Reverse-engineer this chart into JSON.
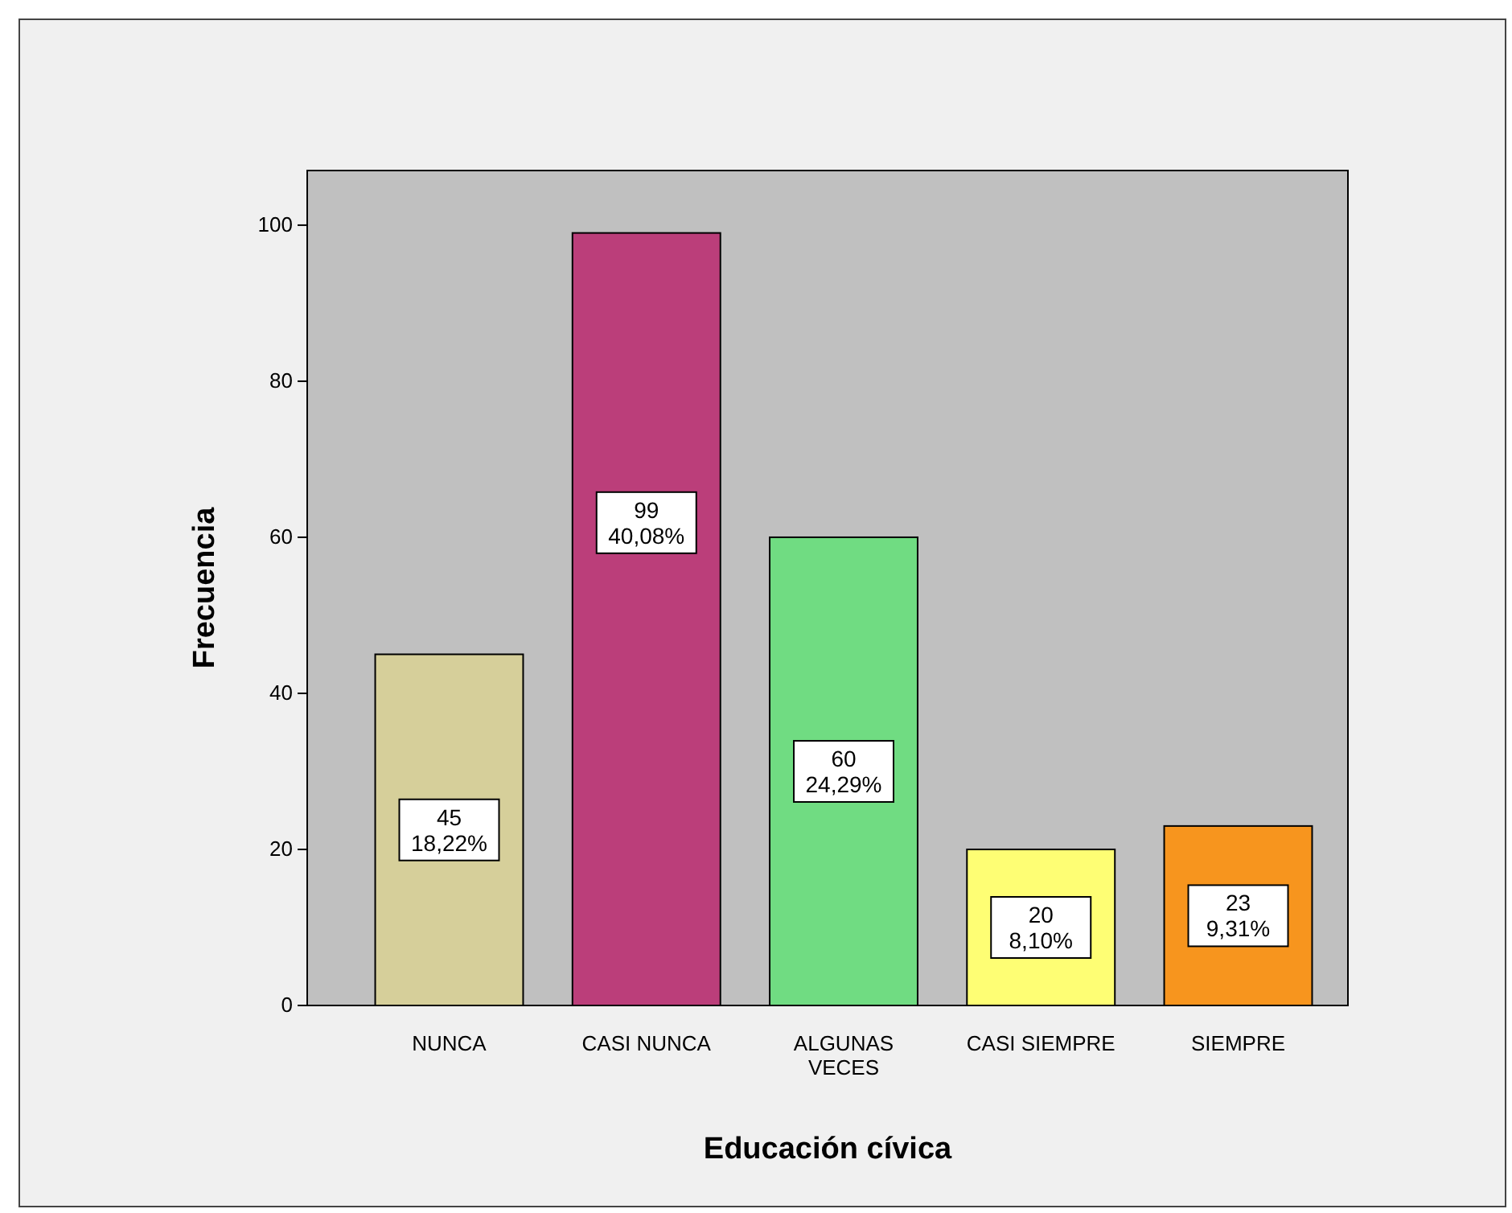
{
  "chart_data": {
    "type": "bar",
    "xlabel": "Educación cívica",
    "ylabel": "Frecuencia",
    "categories": [
      "NUNCA",
      "CASI NUNCA",
      "ALGUNAS VECES",
      "CASI SIEMPRE",
      "SIEMPRE"
    ],
    "values": [
      45,
      99,
      60,
      20,
      23
    ],
    "colors": [
      "#d6cf9a",
      "#bb3e7a",
      "#70dc82",
      "#fefe74",
      "#f7951e"
    ],
    "value_labels": [
      "45\n18,22%",
      "99\n40,08%",
      "60\n24,29%",
      "20\n8,10%",
      "23\n9,31%"
    ],
    "ylim": [
      0,
      107
    ],
    "yticks": [
      0,
      20,
      40,
      60,
      80,
      100
    ],
    "grid": false
  }
}
